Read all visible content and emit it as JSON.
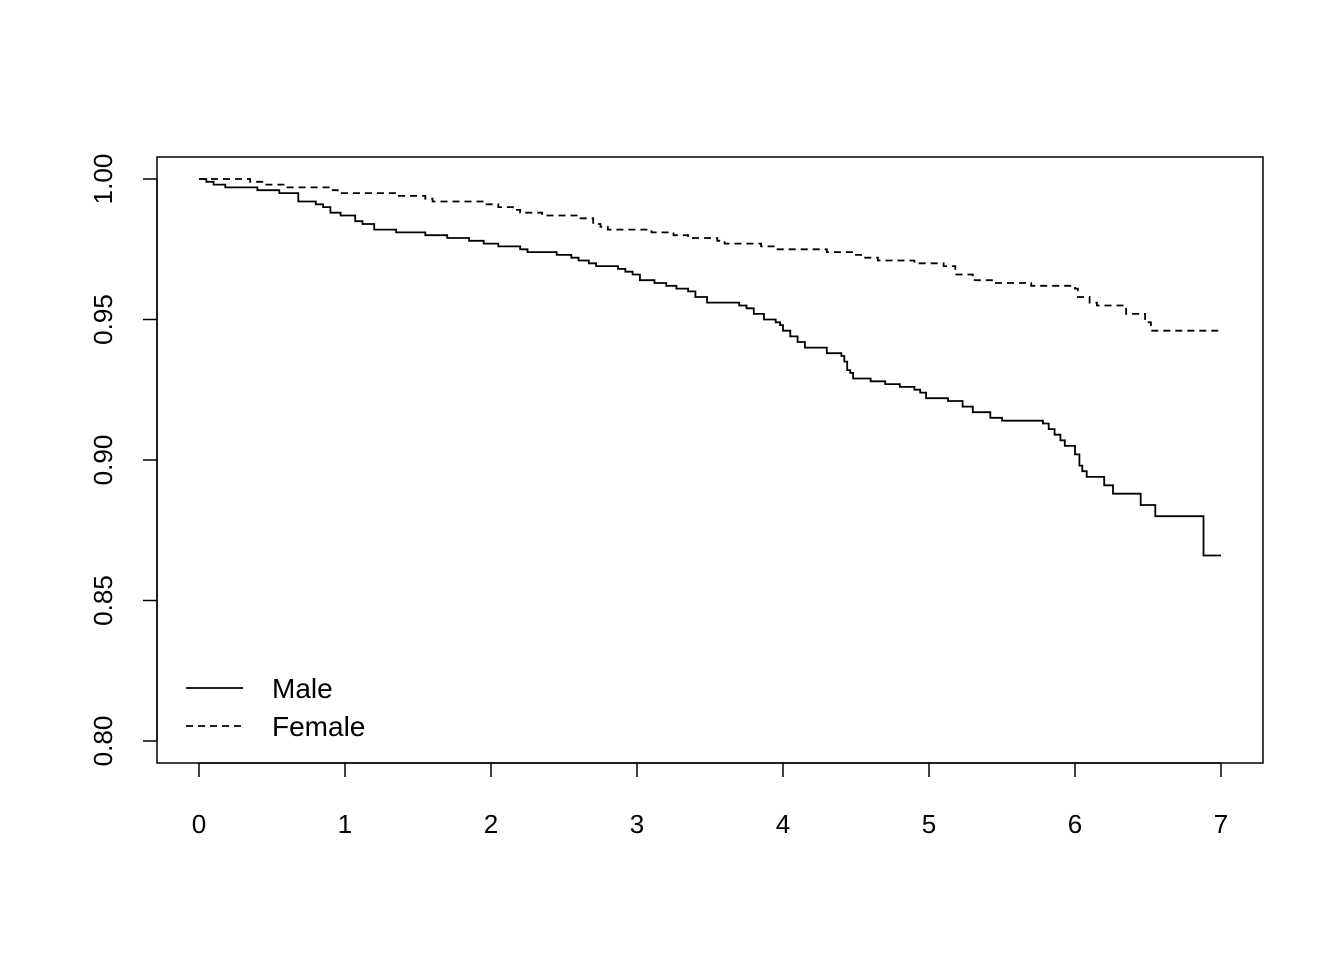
{
  "chart_data": {
    "type": "line",
    "step": true,
    "title": "",
    "xlabel": "",
    "ylabel": "",
    "xlim": [
      0,
      7
    ],
    "ylim": [
      0.8,
      1.0
    ],
    "x_ticks": [
      "0",
      "1",
      "2",
      "3",
      "4",
      "5",
      "6",
      "7"
    ],
    "y_ticks": [
      "0.80",
      "0.85",
      "0.90",
      "0.95",
      "1.00"
    ],
    "grid": false,
    "legend_position": "bottom-left",
    "series": [
      {
        "name": "Male",
        "line_style": "solid",
        "color": "#000000",
        "points": [
          [
            0.0,
            1.0
          ],
          [
            0.05,
            0.999
          ],
          [
            0.1,
            0.998
          ],
          [
            0.18,
            0.997
          ],
          [
            0.4,
            0.996
          ],
          [
            0.55,
            0.995
          ],
          [
            0.68,
            0.992
          ],
          [
            0.8,
            0.991
          ],
          [
            0.85,
            0.99
          ],
          [
            0.9,
            0.988
          ],
          [
            0.97,
            0.987
          ],
          [
            1.07,
            0.985
          ],
          [
            1.12,
            0.984
          ],
          [
            1.2,
            0.982
          ],
          [
            1.35,
            0.981
          ],
          [
            1.55,
            0.98
          ],
          [
            1.7,
            0.979
          ],
          [
            1.85,
            0.978
          ],
          [
            1.95,
            0.977
          ],
          [
            2.05,
            0.976
          ],
          [
            2.2,
            0.975
          ],
          [
            2.25,
            0.974
          ],
          [
            2.45,
            0.973
          ],
          [
            2.55,
            0.972
          ],
          [
            2.6,
            0.971
          ],
          [
            2.67,
            0.97
          ],
          [
            2.72,
            0.969
          ],
          [
            2.87,
            0.968
          ],
          [
            2.92,
            0.967
          ],
          [
            2.97,
            0.966
          ],
          [
            3.02,
            0.964
          ],
          [
            3.12,
            0.963
          ],
          [
            3.2,
            0.962
          ],
          [
            3.27,
            0.961
          ],
          [
            3.35,
            0.96
          ],
          [
            3.4,
            0.958
          ],
          [
            3.48,
            0.956
          ],
          [
            3.7,
            0.955
          ],
          [
            3.75,
            0.954
          ],
          [
            3.8,
            0.952
          ],
          [
            3.87,
            0.95
          ],
          [
            3.95,
            0.949
          ],
          [
            3.98,
            0.948
          ],
          [
            4.0,
            0.946
          ],
          [
            4.05,
            0.944
          ],
          [
            4.1,
            0.942
          ],
          [
            4.15,
            0.94
          ],
          [
            4.3,
            0.938
          ],
          [
            4.4,
            0.937
          ],
          [
            4.42,
            0.935
          ],
          [
            4.44,
            0.932
          ],
          [
            4.46,
            0.931
          ],
          [
            4.48,
            0.929
          ],
          [
            4.6,
            0.928
          ],
          [
            4.7,
            0.927
          ],
          [
            4.8,
            0.926
          ],
          [
            4.9,
            0.925
          ],
          [
            4.94,
            0.924
          ],
          [
            4.98,
            0.922
          ],
          [
            5.13,
            0.921
          ],
          [
            5.23,
            0.919
          ],
          [
            5.3,
            0.917
          ],
          [
            5.42,
            0.915
          ],
          [
            5.5,
            0.914
          ],
          [
            5.78,
            0.913
          ],
          [
            5.82,
            0.911
          ],
          [
            5.86,
            0.909
          ],
          [
            5.9,
            0.907
          ],
          [
            5.93,
            0.905
          ],
          [
            6.0,
            0.902
          ],
          [
            6.03,
            0.898
          ],
          [
            6.05,
            0.896
          ],
          [
            6.08,
            0.894
          ],
          [
            6.2,
            0.891
          ],
          [
            6.26,
            0.888
          ],
          [
            6.45,
            0.884
          ],
          [
            6.55,
            0.88
          ],
          [
            6.88,
            0.866
          ],
          [
            7.0,
            0.866
          ]
        ]
      },
      {
        "name": "Female",
        "line_style": "dashed",
        "color": "#000000",
        "points": [
          [
            0.0,
            1.0
          ],
          [
            0.35,
            0.999
          ],
          [
            0.45,
            0.998
          ],
          [
            0.6,
            0.997
          ],
          [
            0.9,
            0.996
          ],
          [
            0.95,
            0.995
          ],
          [
            1.35,
            0.994
          ],
          [
            1.55,
            0.993
          ],
          [
            1.6,
            0.992
          ],
          [
            1.95,
            0.991
          ],
          [
            2.05,
            0.99
          ],
          [
            2.15,
            0.989
          ],
          [
            2.2,
            0.988
          ],
          [
            2.35,
            0.987
          ],
          [
            2.6,
            0.986
          ],
          [
            2.7,
            0.984
          ],
          [
            2.75,
            0.983
          ],
          [
            2.8,
            0.982
          ],
          [
            3.1,
            0.981
          ],
          [
            3.25,
            0.98
          ],
          [
            3.35,
            0.979
          ],
          [
            3.55,
            0.978
          ],
          [
            3.6,
            0.977
          ],
          [
            3.85,
            0.976
          ],
          [
            3.95,
            0.975
          ],
          [
            4.3,
            0.974
          ],
          [
            4.5,
            0.973
          ],
          [
            4.55,
            0.972
          ],
          [
            4.65,
            0.971
          ],
          [
            4.9,
            0.97
          ],
          [
            5.1,
            0.969
          ],
          [
            5.18,
            0.966
          ],
          [
            5.3,
            0.964
          ],
          [
            5.45,
            0.963
          ],
          [
            5.7,
            0.962
          ],
          [
            6.0,
            0.961
          ],
          [
            6.02,
            0.958
          ],
          [
            6.1,
            0.956
          ],
          [
            6.15,
            0.955
          ],
          [
            6.35,
            0.952
          ],
          [
            6.48,
            0.949
          ],
          [
            6.52,
            0.946
          ],
          [
            7.0,
            0.946
          ]
        ]
      }
    ]
  }
}
